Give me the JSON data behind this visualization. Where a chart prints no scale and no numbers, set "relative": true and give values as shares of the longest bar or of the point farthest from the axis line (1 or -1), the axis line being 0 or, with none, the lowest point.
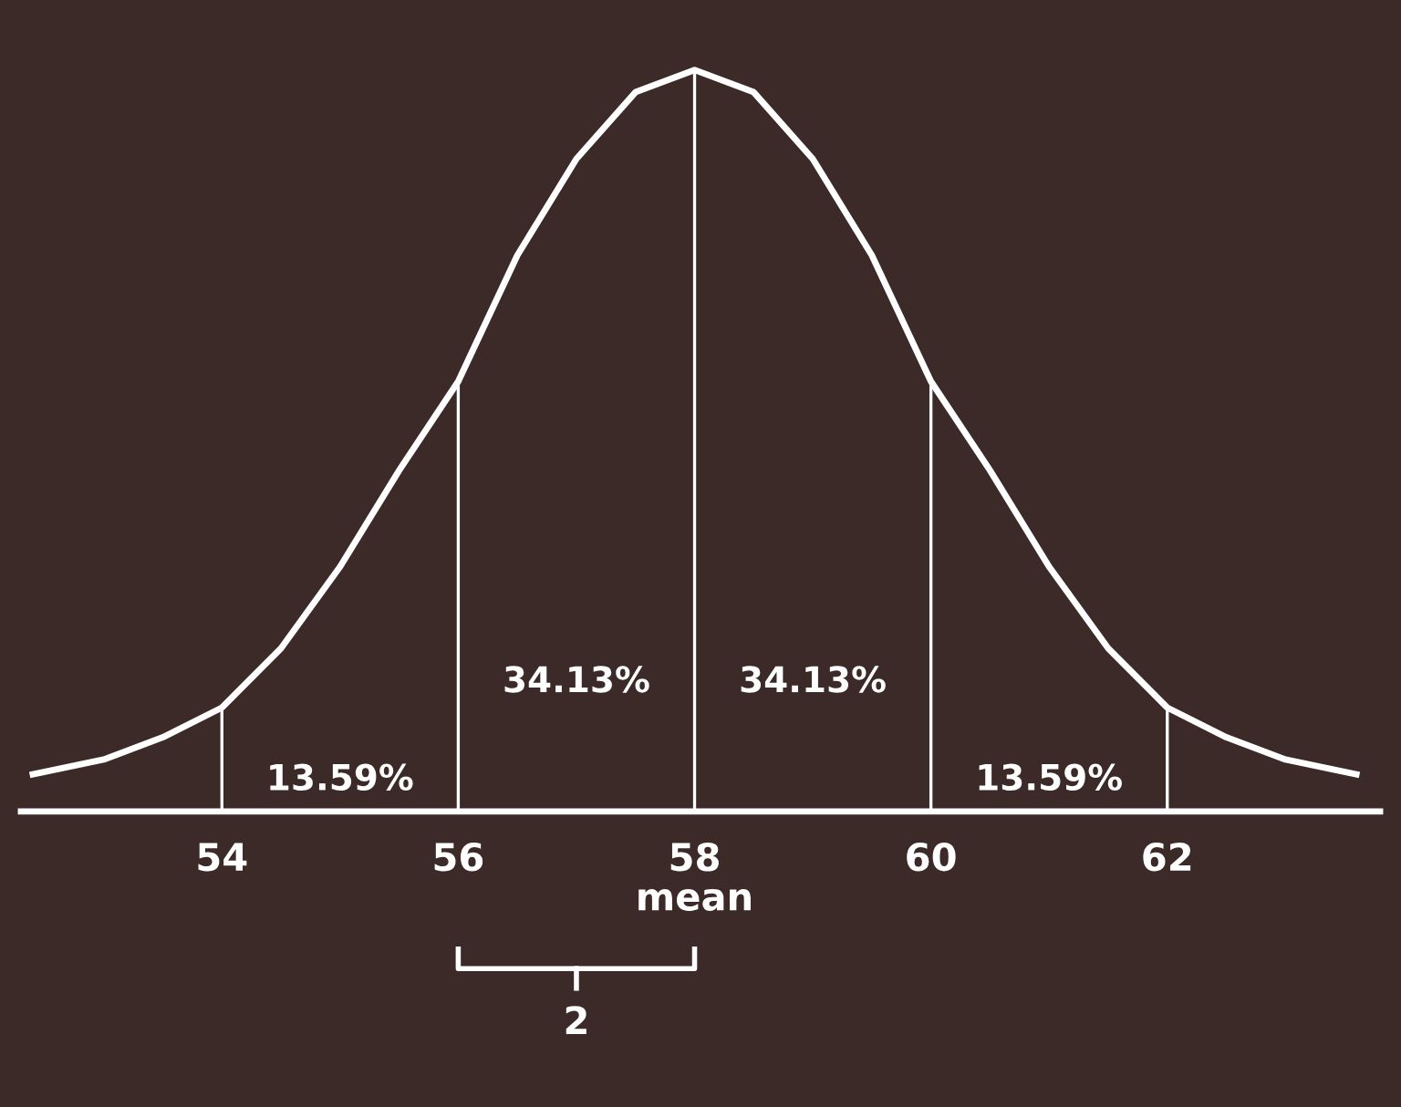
{
  "chart_data": {
    "type": "line",
    "relative": true,
    "x": [
      52.4,
      53,
      53.5,
      54,
      54.5,
      55,
      55.5,
      56,
      56.5,
      57,
      57.5,
      58,
      58.5,
      59,
      59.5,
      60,
      60.5,
      61,
      61.5,
      62,
      62.5,
      63,
      63.6
    ],
    "series": [
      {
        "color": "#ffffff",
        "values": [
          0.05,
          0.07,
          0.1,
          0.14,
          0.22,
          0.33,
          0.46,
          0.58,
          0.75,
          0.88,
          0.97,
          1,
          0.97,
          0.88,
          0.75,
          0.58,
          0.46,
          0.33,
          0.22,
          0.14,
          0.1,
          0.07,
          0.05
        ]
      }
    ],
    "xlim": [
      52.3,
      63.8
    ],
    "xticks": [
      54,
      56,
      {
        "value": 58,
        "label": "58\nmean"
      },
      60,
      62
    ],
    "ref_lines": [
      {
        "axis": "x",
        "value": 54,
        "color": "#ffffff"
      },
      {
        "axis": "x",
        "value": 56,
        "color": "#ffffff"
      },
      {
        "axis": "x",
        "value": 58,
        "color": "#ffffff"
      },
      {
        "axis": "x",
        "value": 60,
        "color": "#ffffff"
      },
      {
        "axis": "x",
        "value": 62,
        "color": "#ffffff"
      }
    ],
    "annotations": [
      "13.59%",
      "34.13%",
      "34.13%",
      "13.59%",
      "2"
    ],
    "grid": false,
    "legend": false,
    "marker": "none",
    "line_style": "solid"
  }
}
